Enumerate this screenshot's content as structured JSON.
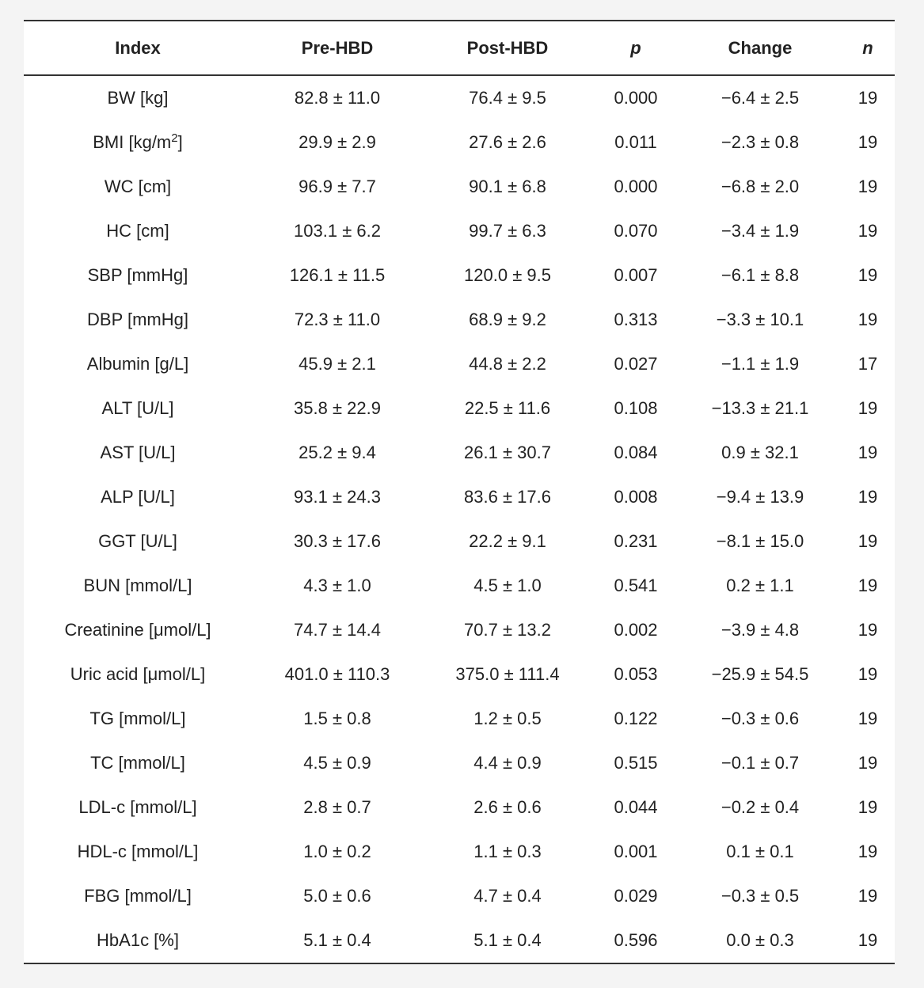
{
  "table": {
    "headers": [
      "Index",
      "Pre-HBD",
      "Post-HBD",
      "p",
      "Change",
      "n"
    ],
    "rows": [
      {
        "index": "BW [kg]",
        "pre": "82.8 ± 11.0",
        "post": "76.4 ± 9.5",
        "p": "0.000",
        "change": "−6.4 ± 2.5",
        "n": "19"
      },
      {
        "index": "BMI [kg/m",
        "index_sup": "2",
        "index_tail": "]",
        "pre": "29.9 ± 2.9",
        "post": "27.6 ± 2.6",
        "p": "0.011",
        "change": "−2.3 ± 0.8",
        "n": "19"
      },
      {
        "index": "WC [cm]",
        "pre": "96.9 ± 7.7",
        "post": "90.1 ± 6.8",
        "p": "0.000",
        "change": "−6.8 ± 2.0",
        "n": "19"
      },
      {
        "index": "HC [cm]",
        "pre": "103.1 ± 6.2",
        "post": "99.7 ± 6.3",
        "p": "0.070",
        "change": "−3.4 ± 1.9",
        "n": "19"
      },
      {
        "index": "SBP [mmHg]",
        "pre": "126.1 ± 11.5",
        "post": "120.0 ± 9.5",
        "p": "0.007",
        "change": "−6.1 ± 8.8",
        "n": "19"
      },
      {
        "index": "DBP [mmHg]",
        "pre": "72.3 ± 11.0",
        "post": "68.9 ± 9.2",
        "p": "0.313",
        "change": "−3.3 ± 10.1",
        "n": "19"
      },
      {
        "index": "Albumin [g/L]",
        "pre": "45.9 ± 2.1",
        "post": "44.8 ± 2.2",
        "p": "0.027",
        "change": "−1.1 ± 1.9",
        "n": "17"
      },
      {
        "index": "ALT [U/L]",
        "pre": "35.8 ± 22.9",
        "post": "22.5 ± 11.6",
        "p": "0.108",
        "change": "−13.3 ± 21.1",
        "n": "19"
      },
      {
        "index": "AST [U/L]",
        "pre": "25.2 ± 9.4",
        "post": "26.1 ± 30.7",
        "p": "0.084",
        "change": "0.9 ± 32.1",
        "n": "19"
      },
      {
        "index": "ALP [U/L]",
        "pre": "93.1 ± 24.3",
        "post": "83.6 ± 17.6",
        "p": "0.008",
        "change": "−9.4 ± 13.9",
        "n": "19"
      },
      {
        "index": "GGT [U/L]",
        "pre": "30.3 ± 17.6",
        "post": "22.2 ± 9.1",
        "p": "0.231",
        "change": "−8.1 ± 15.0",
        "n": "19"
      },
      {
        "index": "BUN [mmol/L]",
        "pre": "4.3 ± 1.0",
        "post": "4.5 ± 1.0",
        "p": "0.541",
        "change": "0.2 ± 1.1",
        "n": "19"
      },
      {
        "index": "Creatinine [μmol/L]",
        "pre": "74.7 ± 14.4",
        "post": "70.7 ± 13.2",
        "p": "0.002",
        "change": "−3.9 ± 4.8",
        "n": "19"
      },
      {
        "index": "Uric acid [μmol/L]",
        "pre": "401.0 ± 110.3",
        "post": "375.0 ± 111.4",
        "p": "0.053",
        "change": "−25.9 ± 54.5",
        "n": "19"
      },
      {
        "index": "TG [mmol/L]",
        "pre": "1.5 ± 0.8",
        "post": "1.2 ± 0.5",
        "p": "0.122",
        "change": "−0.3 ± 0.6",
        "n": "19"
      },
      {
        "index": "TC [mmol/L]",
        "pre": "4.5 ± 0.9",
        "post": "4.4 ± 0.9",
        "p": "0.515",
        "change": "−0.1 ± 0.7",
        "n": "19"
      },
      {
        "index": "LDL-c [mmol/L]",
        "pre": "2.8 ± 0.7",
        "post": "2.6 ± 0.6",
        "p": "0.044",
        "change": "−0.2 ± 0.4",
        "n": "19"
      },
      {
        "index": "HDL-c [mmol/L]",
        "pre": "1.0 ± 0.2",
        "post": "1.1 ± 0.3",
        "p": "0.001",
        "change": "0.1 ± 0.1",
        "n": "19"
      },
      {
        "index": "FBG [mmol/L]",
        "pre": "5.0 ± 0.6",
        "post": "4.7 ± 0.4",
        "p": "0.029",
        "change": "−0.3 ± 0.5",
        "n": "19"
      },
      {
        "index": "HbA1c [%]",
        "pre": "5.1 ± 0.4",
        "post": "5.1 ± 0.4",
        "p": "0.596",
        "change": "0.0 ± 0.3",
        "n": "19"
      }
    ]
  }
}
